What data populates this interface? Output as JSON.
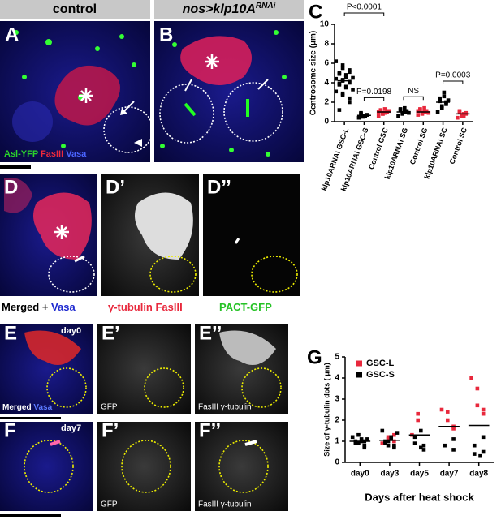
{
  "panel_labels": {
    "letters": {
      "a": "A",
      "b": "B",
      "c": "C",
      "d": "D",
      "d1": "D’",
      "d2": "D’’",
      "e": "E",
      "e1": "E’",
      "e2": "E’’",
      "f": "F",
      "f1": "F’",
      "f2": "F’’",
      "g": "G"
    },
    "header_control": "control",
    "header_experiment": {
      "text": "nos>klp10A",
      "superscript": "RNAi"
    },
    "a_legend": [
      {
        "text": "Asl-YFP ",
        "color": "#2bd42b"
      },
      {
        "text": "FasIII ",
        "color": "#ee2a3c"
      },
      {
        "text": "Vasa",
        "color": "#4a64ff"
      }
    ],
    "d_label": [
      {
        "text": "Merged + ",
        "color": "#000000"
      },
      {
        "text": "Vasa",
        "color": "#1f2ad0"
      }
    ],
    "d1_label": [
      {
        "text": "γ-tubulin FasIII",
        "color": "#e8283c"
      }
    ],
    "d2_label": [
      {
        "text": "PACT-GFP",
        "color": "#25c225"
      }
    ],
    "e_day": "day0",
    "f_day": "day7",
    "e_label": [
      {
        "text": "Merged ",
        "color": "#ffffff"
      },
      {
        "text": "Vasa",
        "color": "#5a78ff"
      }
    ],
    "e1_label": "GFP",
    "e2_label": "FasIII γ-tubulin",
    "f1_label": "GFP",
    "f2_label": "FasIII γ-tubulin"
  },
  "chart_data": [
    {
      "type": "strip",
      "y_label": "Centrosome size (μm)",
      "categories": [
        "klp10ARNAi GSC-L",
        "klp10ARNAi GSC-S",
        "Control GSC",
        "klp10ARNAi SG",
        "Control SG",
        "klp10ARNAi SC",
        "Control SC"
      ],
      "colors": [
        "#000000",
        "#000000",
        "#e8283c",
        "#000000",
        "#e8283c",
        "#000000",
        "#e8283c"
      ],
      "values": [
        [
          6.2,
          5.8,
          5.5,
          5.3,
          5.1,
          5.0,
          4.9,
          4.8,
          4.6,
          4.5,
          4.4,
          4.3,
          4.2,
          4.1,
          4.0,
          3.9,
          3.8,
          3.6,
          3.5,
          3.3,
          3.1,
          2.9,
          2.7,
          2.4,
          2.0,
          1.2
        ],
        [
          0.4,
          0.5,
          0.6,
          0.7,
          0.7,
          0.8,
          0.9,
          0.6
        ],
        [
          0.6,
          0.8,
          0.9,
          1.0,
          1.0,
          1.1,
          1.2,
          1.3,
          0.9,
          1.1,
          1.0,
          0.8
        ],
        [
          0.6,
          0.8,
          0.9,
          1.0,
          1.1,
          1.2,
          1.3,
          1.4,
          1.0,
          0.9
        ],
        [
          0.7,
          0.8,
          0.9,
          1.0,
          1.1,
          1.2,
          1.3,
          1.4,
          1.0,
          0.9,
          1.1
        ],
        [
          1.0,
          1.4,
          1.6,
          1.8,
          2.0,
          2.1,
          2.4,
          2.6,
          3.0,
          2.2
        ],
        [
          0.4,
          0.6,
          0.7,
          0.8,
          0.9,
          1.0,
          1.1,
          0.8,
          0.6
        ]
      ],
      "means": [
        4.2,
        0.65,
        1.0,
        1.0,
        1.0,
        2.0,
        0.8
      ],
      "comparisons": [
        {
          "text": "P<0.0001",
          "between": [
            "klp10ARNAi GSC-L",
            "Control GSC"
          ]
        },
        {
          "text": "P=0.0198",
          "between": [
            "klp10ARNAi GSC-S",
            "Control GSC"
          ]
        },
        {
          "text": "NS",
          "between": [
            "klp10ARNAi SG",
            "Control SG"
          ]
        },
        {
          "text": "P=0.0003",
          "between": [
            "klp10ARNAi SC",
            "Control SC"
          ]
        }
      ],
      "ylim": [
        0,
        10
      ],
      "yticks": [
        0,
        2,
        4,
        6,
        8,
        10
      ]
    },
    {
      "type": "strip",
      "y_label": "Size of γ-tubulin dots ( μm)",
      "x_label": "Days after heat shock",
      "categories": [
        "day0",
        "day3",
        "day5",
        "day7",
        "day8"
      ],
      "series": [
        {
          "name": "GSC-L",
          "color": "#e8283c",
          "values": [
            [],
            [
              0.9,
              1.1,
              1.2,
              1.3,
              1.0
            ],
            [
              1.3,
              2.3,
              2.0
            ],
            [
              2.5,
              2.4,
              2.0,
              1.7,
              1.6
            ],
            [
              4.0,
              3.5,
              2.7,
              2.5,
              2.3
            ]
          ]
        },
        {
          "name": "GSC-S",
          "color": "#000000",
          "values": [
            [
              0.7,
              0.8,
              0.9,
              1.0,
              1.0,
              1.1,
              1.1,
              1.2,
              1.3,
              0.9,
              1.0,
              0.8
            ],
            [
              0.7,
              0.8,
              0.9,
              1.0,
              1.1,
              1.2,
              1.4,
              1.5,
              0.8,
              1.0
            ],
            [
              0.6,
              0.8,
              0.9,
              1.2,
              1.5,
              0.7
            ],
            [
              0.6,
              1.1,
              0.8
            ],
            [
              1.2,
              0.5,
              0.4,
              0.8,
              0.3
            ]
          ]
        }
      ],
      "means": [
        1.0,
        1.05,
        1.3,
        1.7,
        1.75
      ],
      "legend": "top-left",
      "ylim": [
        0,
        5
      ],
      "yticks": [
        0,
        1,
        2,
        3,
        4,
        5
      ]
    }
  ]
}
